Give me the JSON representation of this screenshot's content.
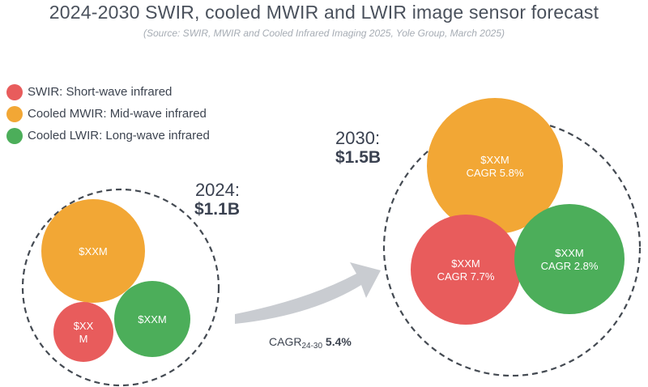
{
  "chart_data": {
    "type": "bubble",
    "title": "2024-2030 SWIR, cooled MWIR and LWIR image sensor forecast",
    "subtitle": "(Source: SWIR, MWIR and Cooled Infrared Imaging 2025, Yole Group, March 2025)",
    "legend": [
      {
        "key": "swir",
        "label": "SWIR: Short-wave infrared",
        "color": "#e85c5c"
      },
      {
        "key": "mwir",
        "label": "Cooled MWIR: Mid-wave infrared",
        "color": "#f2a735"
      },
      {
        "key": "lwir",
        "label": "Cooled LWIR: Long-wave infrared",
        "color": "#4cae5a"
      }
    ],
    "groups": [
      {
        "year": "2024:",
        "total": "$1.1B",
        "bubbles": [
          {
            "key": "mwir",
            "value_lines": [
              "$XXM"
            ],
            "cagr": ""
          },
          {
            "key": "swir",
            "value_lines": [
              "$XX",
              "M"
            ],
            "cagr": ""
          },
          {
            "key": "lwir",
            "value_lines": [
              "$XXM"
            ],
            "cagr": ""
          }
        ]
      },
      {
        "year": "2030:",
        "total": "$1.5B",
        "bubbles": [
          {
            "key": "mwir",
            "value_lines": [
              "$XXM"
            ],
            "cagr": "CAGR 5.8%"
          },
          {
            "key": "swir",
            "value_lines": [
              "$XXM"
            ],
            "cagr": "CAGR 7.7%"
          },
          {
            "key": "lwir",
            "value_lines": [
              "$XXM"
            ],
            "cagr": "CAGR 2.8%"
          }
        ]
      }
    ],
    "overall_cagr": {
      "label": "CAGR",
      "subscript": "24-30",
      "value": "5.4%"
    }
  }
}
